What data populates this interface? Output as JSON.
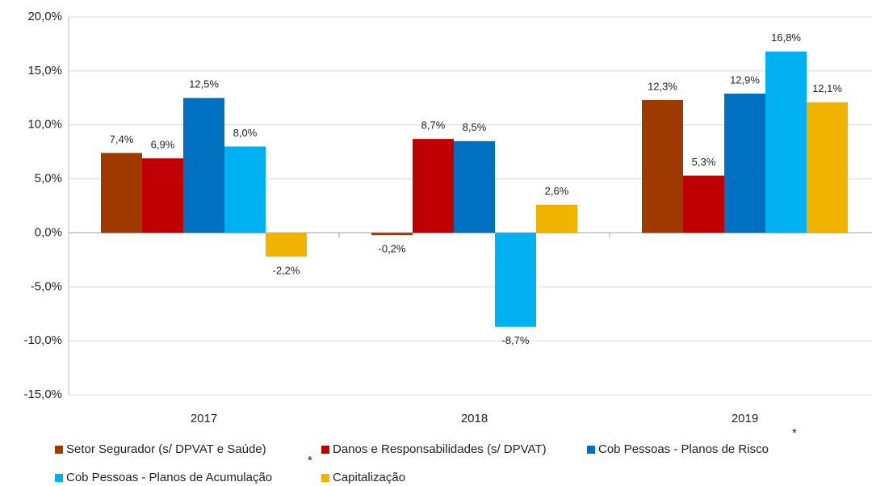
{
  "chart_data": {
    "type": "bar",
    "categories": [
      "2017",
      "2018",
      "2019"
    ],
    "series": [
      {
        "name": "Setor Segurador (s/ DPVAT e Saúde)",
        "color": "#9e3a00",
        "values": [
          7.4,
          -0.2,
          12.3
        ],
        "value_labels": [
          "7,4%",
          "-0,2%",
          "12,3%"
        ]
      },
      {
        "name": "Danos e Responsabilidades (s/ DPVAT)",
        "color": "#c00000",
        "values": [
          6.9,
          8.7,
          5.3
        ],
        "value_labels": [
          "6,9%",
          "8,7%",
          "5,3%"
        ]
      },
      {
        "name": "Cob Pessoas - Planos de Risco",
        "color": "#0070c0",
        "values": [
          12.5,
          8.5,
          12.9
        ],
        "value_labels": [
          "12,5%",
          "8,5%",
          "12,9%"
        ]
      },
      {
        "name": "Cob Pessoas - Planos de Acumulação",
        "color": "#00b0f0",
        "values": [
          8.0,
          -8.7,
          16.8
        ],
        "value_labels": [
          "8,0%",
          "-8,7%",
          "16,8%"
        ]
      },
      {
        "name": "Capitalização",
        "color": "#f0b400",
        "values": [
          -2.2,
          2.6,
          12.1
        ],
        "value_labels": [
          "-2,2%",
          "2,6%",
          "12,1%"
        ]
      }
    ],
    "ylim": [
      -15,
      20
    ],
    "yticks": [
      {
        "value": -15,
        "label": "-15,0%"
      },
      {
        "value": -10,
        "label": "-10,0%"
      },
      {
        "value": -5,
        "label": "-5,0%"
      },
      {
        "value": 0,
        "label": "0,0%"
      },
      {
        "value": 5,
        "label": "5,0%"
      },
      {
        "value": 10,
        "label": "10,0%"
      },
      {
        "value": 15,
        "label": "15,0%"
      },
      {
        "value": 20,
        "label": "20,0%"
      }
    ],
    "grid": true,
    "legend": "bottom",
    "annotations": [
      "*",
      "*"
    ]
  }
}
